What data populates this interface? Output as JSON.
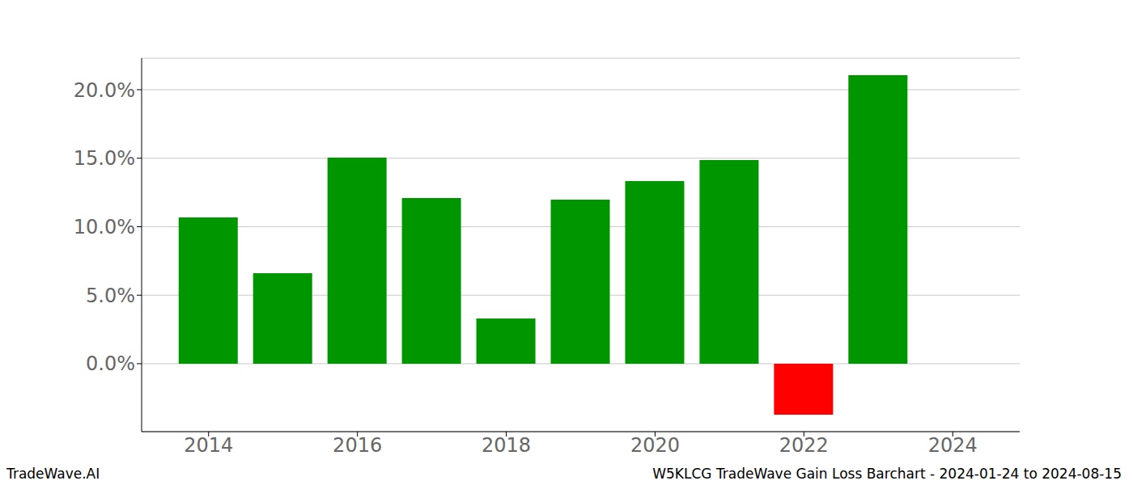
{
  "chart_data": {
    "type": "bar",
    "title": "W5KLCG TradeWave Gain Loss Barchart - 2024-01-24 to 2024-08-15",
    "annotations": [
      "TradeWave.AI"
    ],
    "x": [
      2014,
      2015,
      2016,
      2017,
      2018,
      2019,
      2020,
      2021,
      2022,
      2023
    ],
    "values": [
      10.68,
      6.6,
      15.04,
      12.09,
      3.3,
      11.98,
      13.33,
      14.87,
      -3.72,
      21.06
    ],
    "colors": [
      "#009600",
      "#009600",
      "#009600",
      "#009600",
      "#009600",
      "#009600",
      "#009600",
      "#009600",
      "#ff0000",
      "#009600"
    ],
    "xlim": [
      2013.1,
      2024.9
    ],
    "xticks": [
      2014,
      2016,
      2018,
      2020,
      2022,
      2024
    ],
    "ylim": [
      -4.96,
      22.3
    ],
    "yticks": [
      {
        "value": 0,
        "label": "0.0%"
      },
      {
        "value": 5,
        "label": "5.0%"
      },
      {
        "value": 10,
        "label": "10.0%"
      },
      {
        "value": 15,
        "label": "15.0%"
      },
      {
        "value": 20,
        "label": "20.0%"
      }
    ],
    "grid": true
  }
}
